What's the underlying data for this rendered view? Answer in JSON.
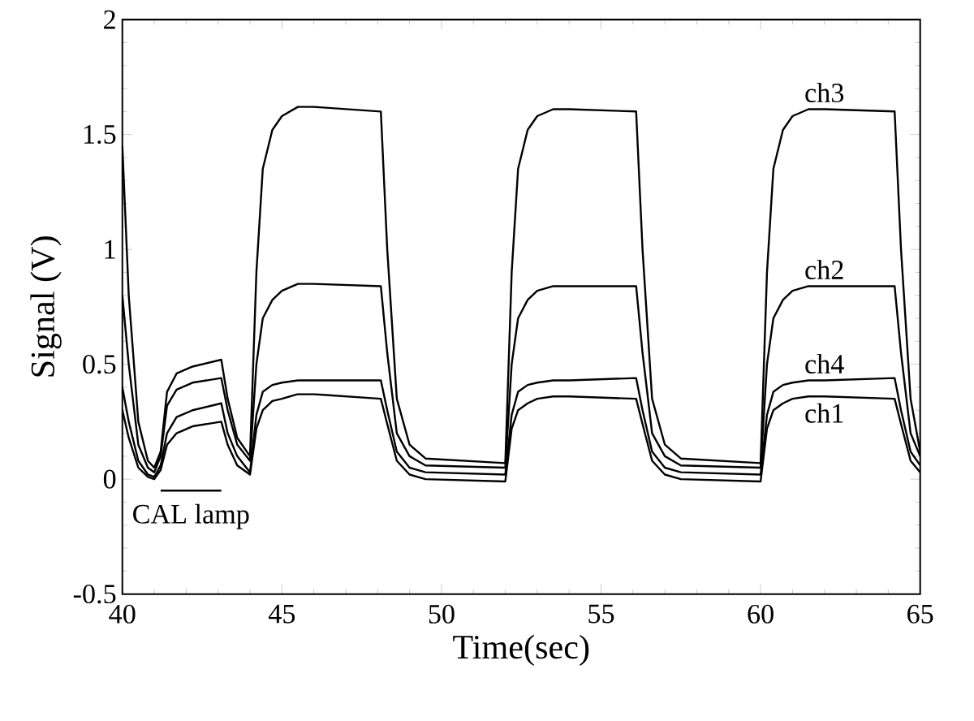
{
  "chart_data": {
    "type": "line",
    "xlabel": "Time(sec)",
    "ylabel": "Signal (V)",
    "xlim": [
      40,
      65
    ],
    "ylim": [
      -0.5,
      2
    ],
    "xticks": [
      40,
      45,
      50,
      55,
      60,
      65
    ],
    "yticks": [
      -0.5,
      0,
      0.5,
      1,
      1.5,
      2
    ],
    "grid": false,
    "marker": "none",
    "line_style": "solid",
    "x": [
      40,
      40.2,
      40.5,
      40.8,
      41.0,
      41.2,
      41.4,
      41.7,
      42.2,
      43.1,
      43.3,
      43.6,
      44.0,
      44.2,
      44.4,
      44.7,
      45.0,
      45.5,
      46,
      48.1,
      48.3,
      48.6,
      49,
      49.5,
      52.0,
      52.2,
      52.4,
      52.7,
      53.0,
      53.5,
      54,
      56.1,
      56.3,
      56.6,
      57,
      57.5,
      60.0,
      60.2,
      60.4,
      60.7,
      61.0,
      61.5,
      62,
      64.2,
      64.4,
      64.7,
      65
    ],
    "series": [
      {
        "name": "ch3",
        "color": "#000000",
        "values": [
          1.45,
          0.8,
          0.25,
          0.08,
          0.05,
          0.12,
          0.38,
          0.46,
          0.49,
          0.52,
          0.35,
          0.18,
          0.1,
          0.9,
          1.35,
          1.52,
          1.58,
          1.62,
          1.62,
          1.6,
          1.0,
          0.35,
          0.15,
          0.09,
          0.07,
          0.9,
          1.35,
          1.52,
          1.58,
          1.61,
          1.61,
          1.6,
          1.0,
          0.35,
          0.15,
          0.09,
          0.07,
          0.9,
          1.35,
          1.52,
          1.58,
          1.61,
          1.61,
          1.6,
          1.0,
          0.35,
          0.12
        ]
      },
      {
        "name": "ch2",
        "color": "#000000",
        "values": [
          0.8,
          0.5,
          0.15,
          0.05,
          0.03,
          0.1,
          0.32,
          0.39,
          0.42,
          0.44,
          0.3,
          0.15,
          0.08,
          0.5,
          0.7,
          0.78,
          0.82,
          0.85,
          0.85,
          0.84,
          0.55,
          0.2,
          0.1,
          0.06,
          0.05,
          0.5,
          0.7,
          0.78,
          0.82,
          0.84,
          0.84,
          0.84,
          0.55,
          0.2,
          0.1,
          0.06,
          0.05,
          0.5,
          0.7,
          0.78,
          0.82,
          0.84,
          0.84,
          0.84,
          0.55,
          0.2,
          0.1
        ]
      },
      {
        "name": "ch4",
        "color": "#000000",
        "values": [
          0.4,
          0.25,
          0.08,
          0.02,
          0.01,
          0.06,
          0.2,
          0.27,
          0.3,
          0.33,
          0.2,
          0.1,
          0.03,
          0.28,
          0.38,
          0.41,
          0.42,
          0.43,
          0.43,
          0.43,
          0.3,
          0.12,
          0.05,
          0.03,
          0.02,
          0.28,
          0.38,
          0.41,
          0.42,
          0.43,
          0.43,
          0.44,
          0.3,
          0.12,
          0.05,
          0.03,
          0.02,
          0.28,
          0.38,
          0.41,
          0.42,
          0.43,
          0.43,
          0.44,
          0.3,
          0.12,
          0.06
        ]
      },
      {
        "name": "ch1",
        "color": "#000000",
        "values": [
          0.3,
          0.18,
          0.05,
          0.01,
          0.0,
          0.04,
          0.15,
          0.2,
          0.23,
          0.25,
          0.15,
          0.06,
          0.02,
          0.22,
          0.3,
          0.34,
          0.35,
          0.37,
          0.37,
          0.35,
          0.24,
          0.08,
          0.02,
          0.0,
          -0.01,
          0.22,
          0.3,
          0.33,
          0.35,
          0.36,
          0.36,
          0.35,
          0.24,
          0.08,
          0.02,
          0.0,
          -0.01,
          0.22,
          0.3,
          0.33,
          0.35,
          0.36,
          0.36,
          0.35,
          0.24,
          0.08,
          0.03
        ]
      },
      {
        "color": "#000000",
        "x": [
          41.2,
          43.1
        ],
        "values": [
          -0.05,
          -0.05
        ]
      }
    ],
    "annotations": [
      "CAL lamp"
    ]
  }
}
